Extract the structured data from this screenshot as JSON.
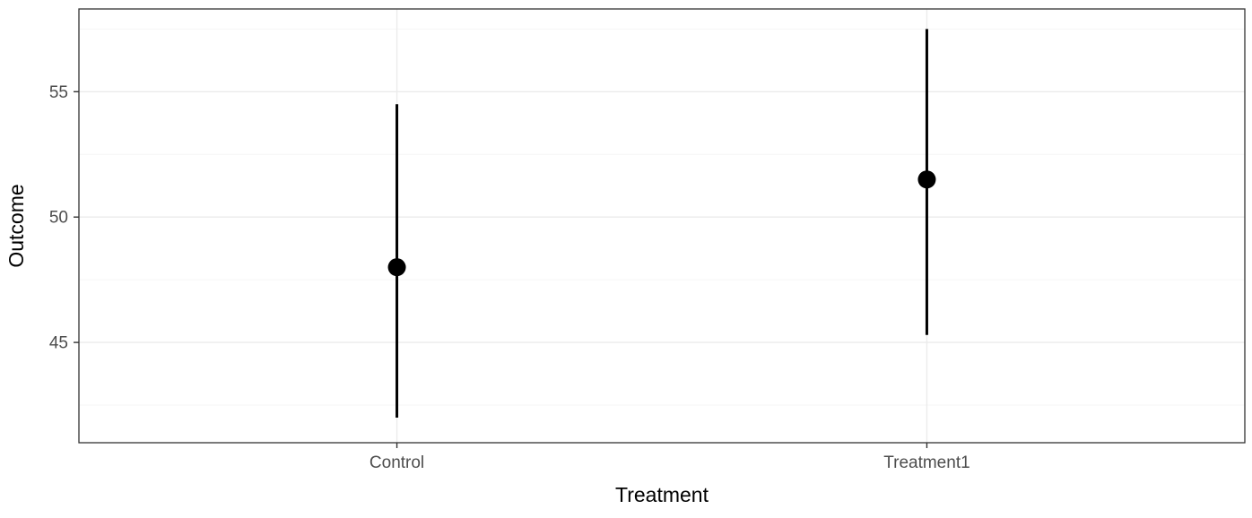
{
  "chart_data": {
    "type": "pointrange",
    "title": "",
    "xlabel": "Treatment",
    "ylabel": "Outcome",
    "categories": [
      "Control",
      "Treatment1"
    ],
    "series": [
      {
        "name": "estimate",
        "values": [
          48.0,
          51.5
        ]
      },
      {
        "name": "lower",
        "values": [
          42.0,
          45.3
        ]
      },
      {
        "name": "upper",
        "values": [
          54.5,
          57.5
        ]
      }
    ],
    "ylim": [
      41.0,
      58.3
    ],
    "yticks": [
      45,
      50,
      55
    ],
    "y_minor_ticks": [
      42.5,
      47.5,
      52.5,
      57.5
    ],
    "grid": true,
    "legend": "none",
    "colors": {
      "point": "#000000",
      "range_line": "#000000",
      "grid_major": "#ebebeb",
      "grid_minor": "#f6f6f6",
      "panel_border": "#333333",
      "tick_mark": "#333333",
      "tick_label": "#4d4d4d",
      "axis_title": "#000000",
      "background": "#ffffff"
    }
  }
}
